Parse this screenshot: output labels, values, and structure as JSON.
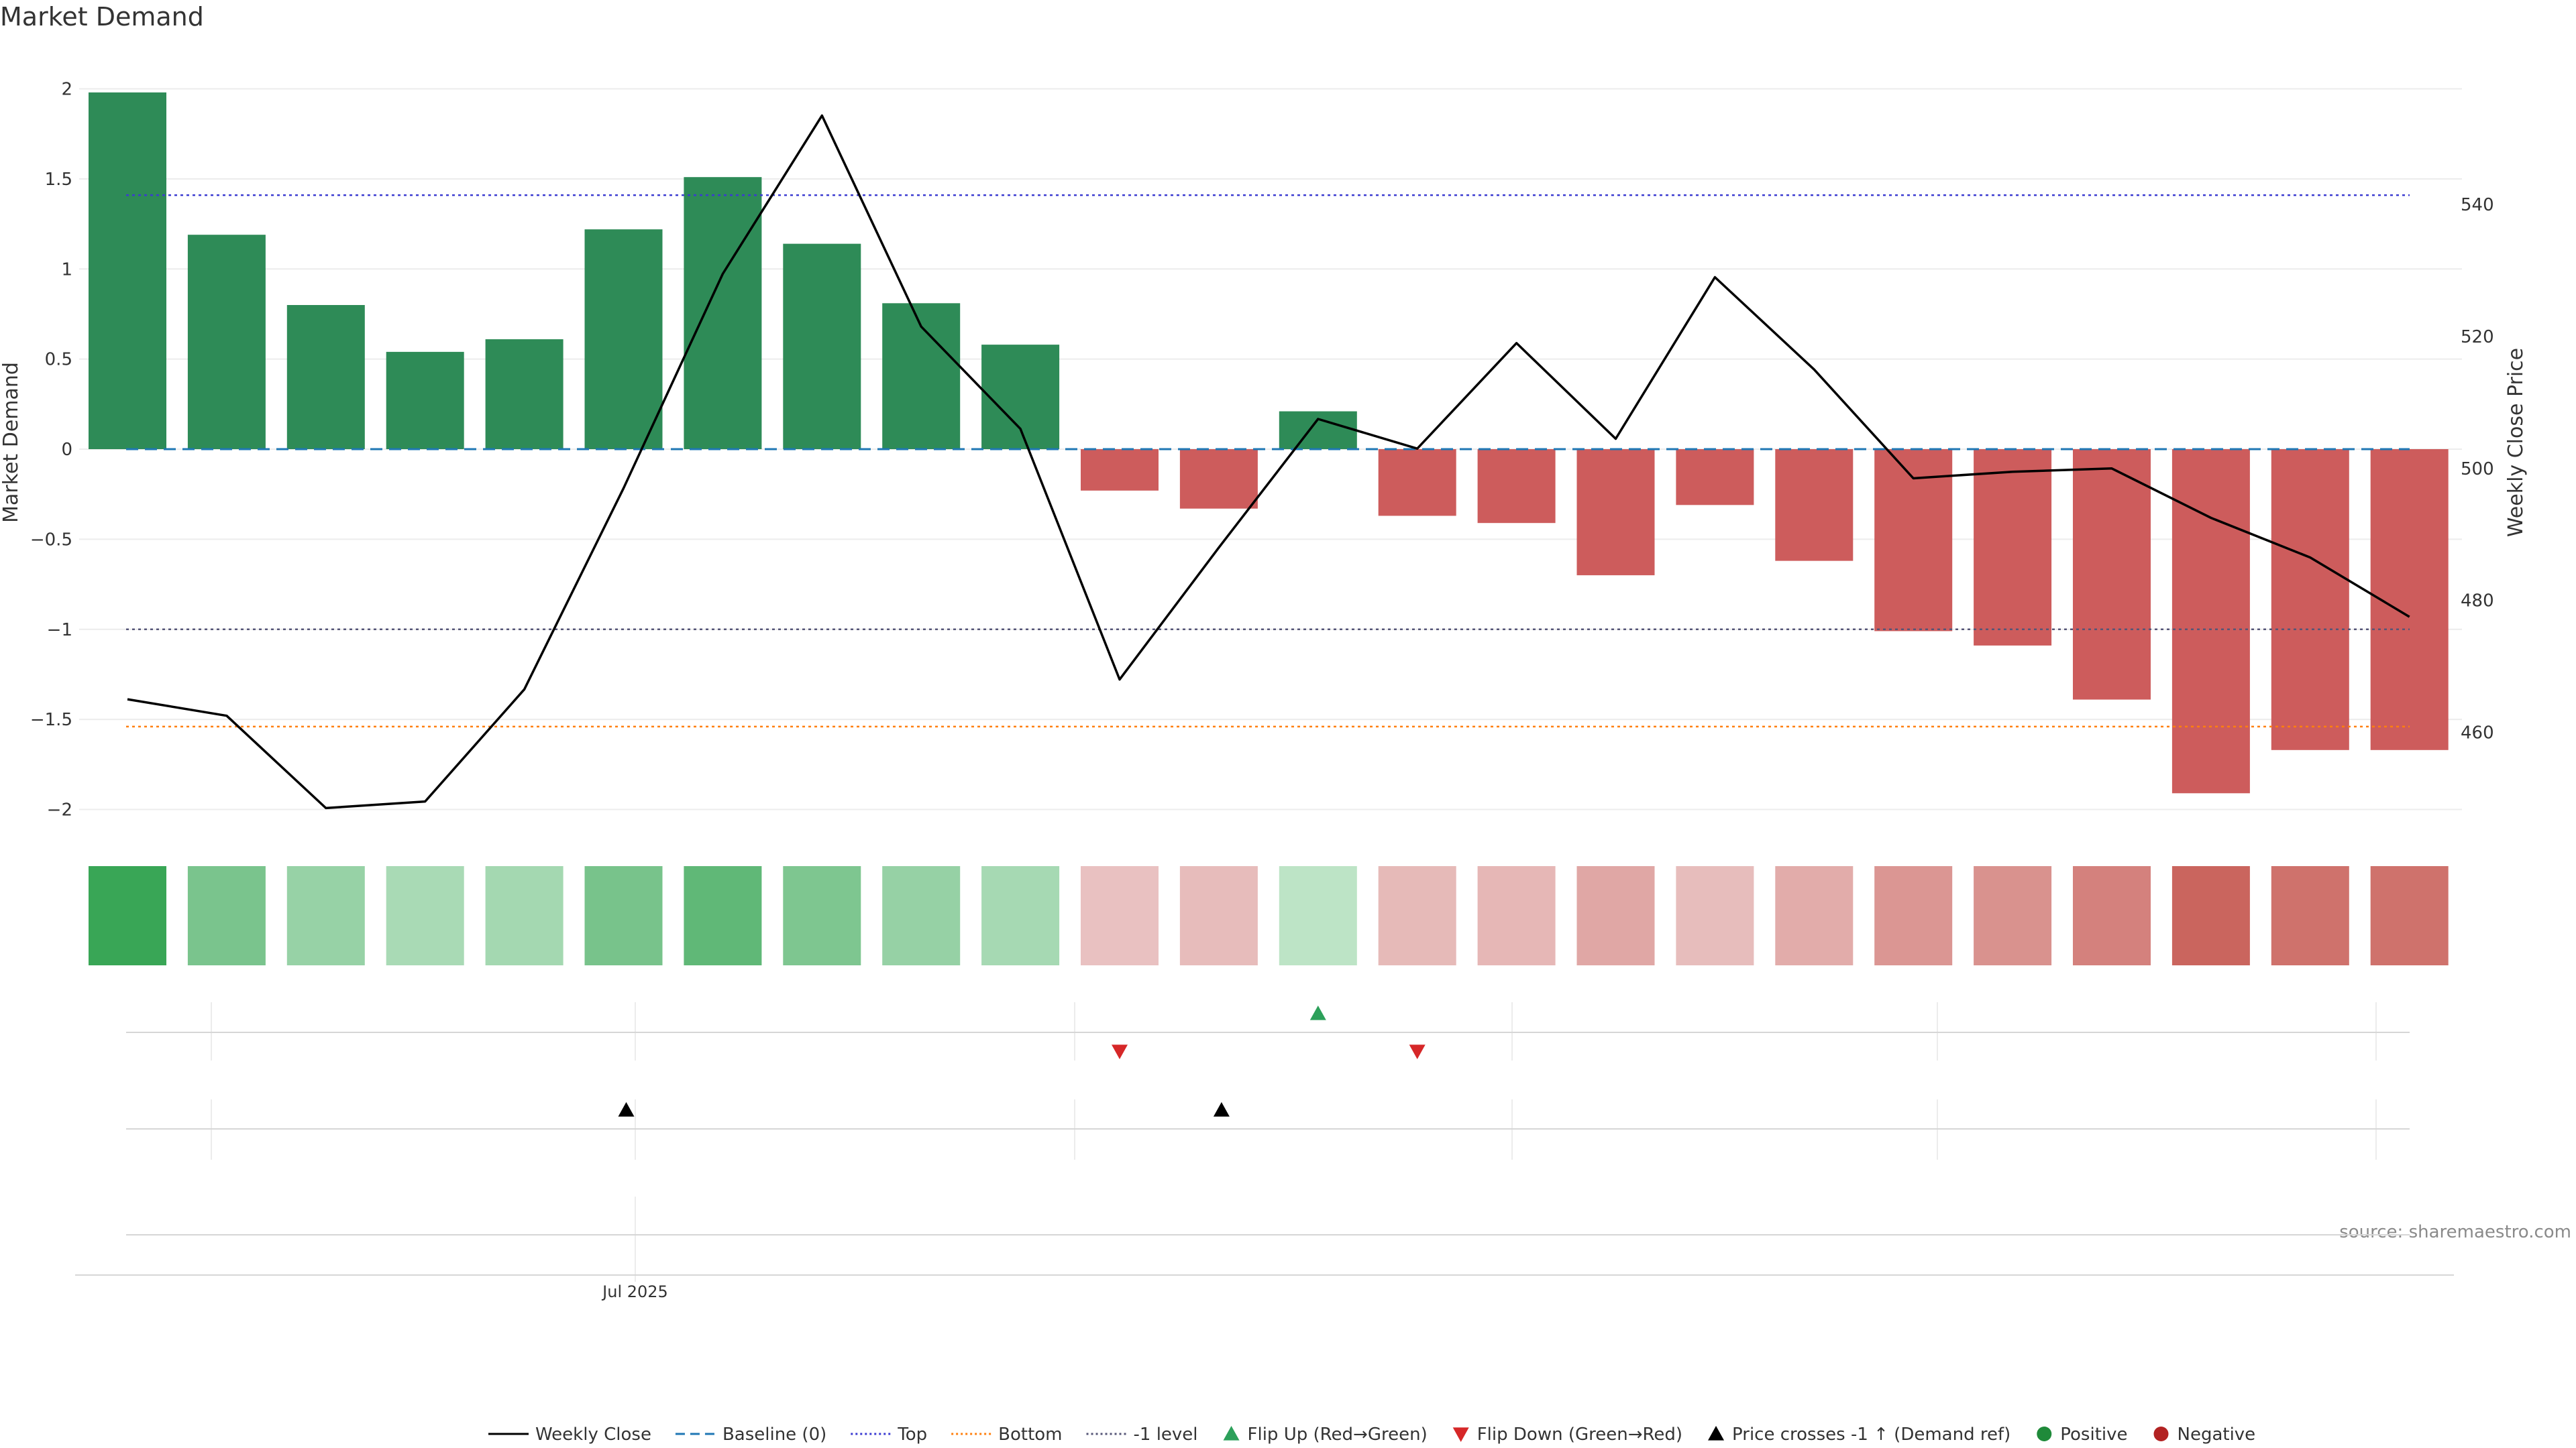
{
  "chart_data": {
    "type": "bar",
    "title": "Market Demand",
    "ylabel": "Market Demand",
    "y2label": "Weekly Close Price",
    "source": "source: sharemaestro.com",
    "ylim": [
      -2.15,
      2.15
    ],
    "y2lim": [
      446,
      557
    ],
    "y_ticks": [
      2,
      1.5,
      1,
      0.5,
      0,
      -0.5,
      -1,
      -1.5,
      -2
    ],
    "y_tick_labels": [
      "2",
      "1.5",
      "1",
      "0.5",
      "0",
      "−0.5",
      "−1",
      "−1.5",
      "−2"
    ],
    "y2_ticks": [
      540,
      520,
      500,
      480,
      460
    ],
    "y2_tick_labels": [
      "540",
      "520",
      "500",
      "480",
      "460"
    ],
    "x_tick_label": "Jul 2025",
    "x_tick_index": 5.1,
    "reference_lines": {
      "baseline": 0,
      "top": 1.41,
      "bottom": -1.54,
      "minus_one": -1
    },
    "demand": [
      1.98,
      1.19,
      0.8,
      0.54,
      0.61,
      1.22,
      1.51,
      1.14,
      0.81,
      0.58,
      -0.23,
      -0.33,
      0.21,
      -0.37,
      -0.41,
      -0.7,
      -0.31,
      -0.62,
      -1.01,
      -1.09,
      -1.39,
      -1.91,
      -1.67,
      -1.67
    ],
    "weekly_close": [
      465,
      462.5,
      448.5,
      449.5,
      466.5,
      497,
      529.5,
      553.5,
      521.5,
      506,
      468,
      488,
      507.5,
      503,
      519,
      504.5,
      529,
      515,
      498.5,
      499.5,
      500,
      492.5,
      486.5,
      477.5
    ],
    "flip_up_indices": [
      12
    ],
    "flip_down_indices": [
      10,
      13
    ],
    "price_cross_indices": [
      5,
      11
    ],
    "colors": {
      "positive_bar": "#2e8b57",
      "negative_bar": "#cd5c5c",
      "close_line": "#000000",
      "baseline": "#1f77b4",
      "top": "#3b3bd1",
      "bottom": "#ff7f0e",
      "minus_one": "#555577",
      "flip_up": "#2ca05a",
      "flip_down": "#d62728",
      "cross": "#000000",
      "positive_marker": "#1f8a3a",
      "negative_marker": "#b22222"
    },
    "legend": [
      {
        "label": "Weekly Close",
        "kind": "line",
        "color": "#000000",
        "dash": ""
      },
      {
        "label": "Baseline (0)",
        "kind": "line",
        "color": "#1f77b4",
        "dash": "14,8"
      },
      {
        "label": "Top",
        "kind": "line",
        "color": "#3b3bd1",
        "dash": "3,4"
      },
      {
        "label": "Bottom",
        "kind": "line",
        "color": "#ff7f0e",
        "dash": "3,4"
      },
      {
        "label": "-1 level",
        "kind": "line",
        "color": "#555577",
        "dash": "3,4"
      },
      {
        "label": "Flip Up (Red→Green)",
        "kind": "up",
        "color": "#2ca05a"
      },
      {
        "label": "Flip Down (Green→Red)",
        "kind": "down",
        "color": "#d62728"
      },
      {
        "label": "Price crosses -1 ↑ (Demand ref)",
        "kind": "up",
        "color": "#000000"
      },
      {
        "label": "Positive",
        "kind": "dot",
        "color": "#1f8a3a"
      },
      {
        "label": "Negative",
        "kind": "dot",
        "color": "#b22222"
      }
    ],
    "legend_position": "bottom-center"
  }
}
